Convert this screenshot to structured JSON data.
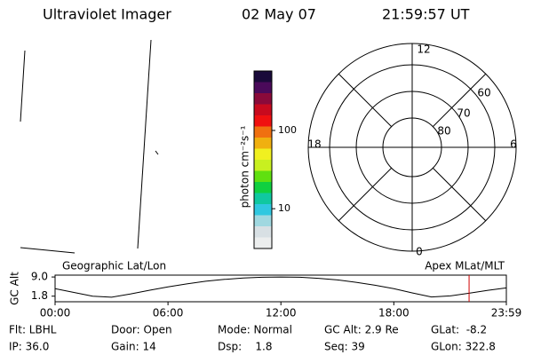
{
  "header": {
    "title": "Ultraviolet Imager",
    "date": "02 May 07",
    "time": "21:59:57 UT"
  },
  "colorbar": {
    "label": "photon cm⁻²s⁻¹",
    "log": true,
    "lim": [
      3.1,
      575
    ],
    "ticks": [
      10,
      100
    ],
    "colors": [
      "#1a0a3a",
      "#4a0a5a",
      "#8a0a3a",
      "#c80a1e",
      "#f01010",
      "#f07010",
      "#f0b010",
      "#f0f020",
      "#c8f020",
      "#60e010",
      "#10d040",
      "#10c8a0",
      "#30c8e0",
      "#a0d8e0",
      "#d8e0e4",
      "#eceeee"
    ]
  },
  "polar": {
    "mlt_labels": [
      "12",
      "18",
      "6",
      "0"
    ],
    "lat_labels": [
      "60",
      "70",
      "80"
    ]
  },
  "altitude": {
    "left_label": "Geographic Lat/Lon",
    "right_label": "Apex MLat/MLT",
    "ylabel": "GC Alt",
    "ylim": [
      -0.3,
      9.7
    ],
    "yticks": [
      {
        "value": 9.0,
        "label": "9.0"
      },
      {
        "value": 1.8,
        "label": "1.8"
      }
    ],
    "xlim": [
      0,
      23.98
    ],
    "xticks": [
      {
        "value": 0,
        "label": "00:00"
      },
      {
        "value": 6,
        "label": "06:00"
      },
      {
        "value": 12,
        "label": "12:00"
      },
      {
        "value": 18,
        "label": "18:00"
      },
      {
        "value": 23.98,
        "label": "23:59"
      }
    ],
    "x": [
      0,
      1,
      2,
      3,
      4,
      5,
      6,
      7,
      8,
      9,
      10,
      11,
      12,
      13,
      14,
      15,
      16,
      17,
      18,
      19,
      20,
      21,
      22,
      23,
      23.98
    ],
    "values": [
      4.6,
      3.2,
      1.8,
      1.4,
      2.6,
      4.0,
      5.3,
      6.4,
      7.4,
      8.1,
      8.6,
      8.9,
      9.0,
      8.9,
      8.5,
      7.9,
      7.0,
      5.9,
      4.6,
      3.0,
      1.5,
      1.9,
      2.9,
      4.0,
      4.9
    ],
    "marker": 22.0,
    "marker_color": "#d00000"
  },
  "info": [
    [
      "Flt: LBHL",
      "Door: Open",
      "Mode: Normal",
      "GC Alt: 2.9 Re",
      "GLat:  -8.2"
    ],
    [
      "IP: 36.0",
      "Gain: 14",
      "Dsp:    1.8",
      "Seq: 39",
      "GLon: 322.8"
    ]
  ]
}
